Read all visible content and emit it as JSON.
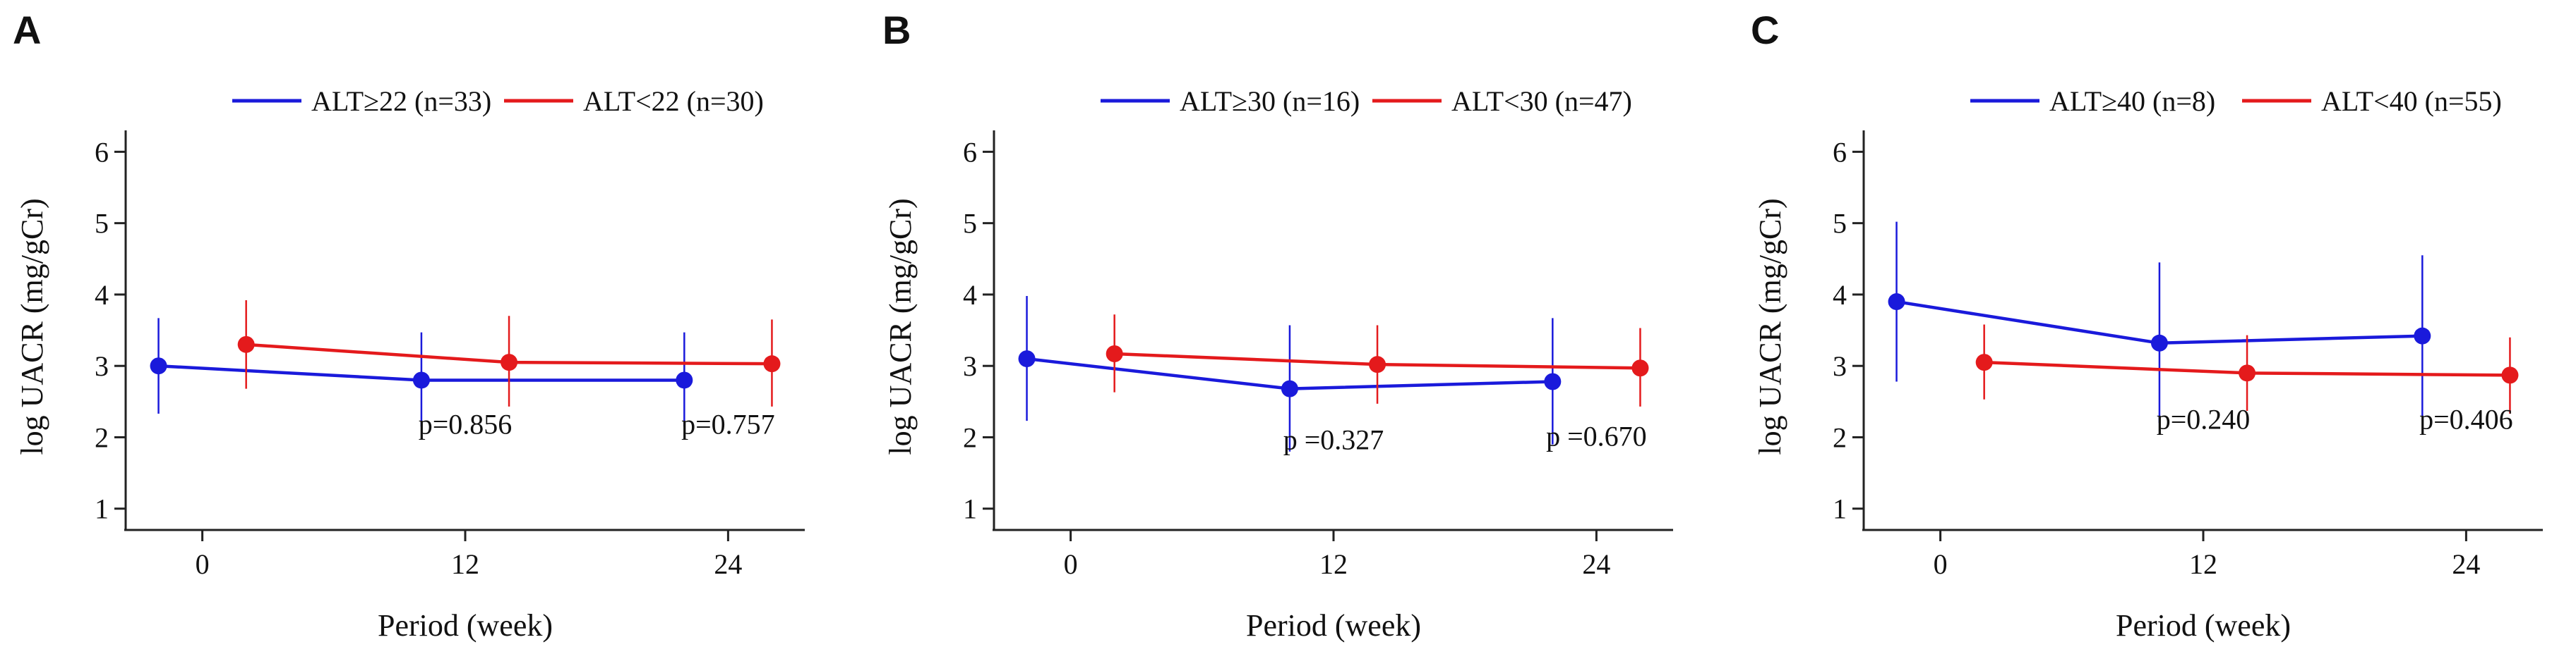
{
  "figure": {
    "description_domain": "Chart"
  },
  "chart_data": [
    {
      "panel_label": "A",
      "type": "line",
      "xlabel": "Period (week)",
      "ylabel": "log UACR (mg/gCr)",
      "xticks": [
        "0",
        "12",
        "24"
      ],
      "yticks": [
        "1",
        "2",
        "3",
        "4",
        "5",
        "6"
      ],
      "ylim": [
        0.8,
        6.3
      ],
      "xlim": [
        -3.5,
        27.5
      ],
      "colors": {
        "high": "#1a1adb",
        "low": "#e41a1c"
      },
      "series": [
        {
          "name": "ALT≥22 (n=33)",
          "key": "high",
          "x": [
            -2,
            10,
            22
          ],
          "y": [
            3.0,
            2.8,
            2.8
          ],
          "err_low": [
            2.33,
            2.15,
            2.15
          ],
          "err_high": [
            3.67,
            3.47,
            3.47
          ]
        },
        {
          "name": "ALT<22 (n=30)",
          "key": "low",
          "x": [
            2,
            14,
            26
          ],
          "y": [
            3.3,
            3.05,
            3.03
          ],
          "err_low": [
            2.68,
            2.43,
            2.43
          ],
          "err_high": [
            3.92,
            3.7,
            3.65
          ]
        }
      ],
      "annotations": [
        {
          "text": "p=0.856",
          "x": 12,
          "y": 2.05
        },
        {
          "text": "p=0.757",
          "x": 24,
          "y": 2.05
        }
      ]
    },
    {
      "panel_label": "B",
      "type": "line",
      "xlabel": "Period (week)",
      "ylabel": "log UACR (mg/gCr)",
      "xticks": [
        "0",
        "12",
        "24"
      ],
      "yticks": [
        "1",
        "2",
        "3",
        "4",
        "5",
        "6"
      ],
      "ylim": [
        0.8,
        6.3
      ],
      "xlim": [
        -3.5,
        27.5
      ],
      "colors": {
        "high": "#1a1adb",
        "low": "#e41a1c"
      },
      "series": [
        {
          "name": "ALT≥30 (n=16)",
          "key": "high",
          "x": [
            -2,
            10,
            22
          ],
          "y": [
            3.1,
            2.68,
            2.78
          ],
          "err_low": [
            2.23,
            1.8,
            1.9
          ],
          "err_high": [
            3.98,
            3.57,
            3.67
          ]
        },
        {
          "name": "ALT<30 (n=47)",
          "key": "low",
          "x": [
            2,
            14,
            26
          ],
          "y": [
            3.17,
            3.02,
            2.97
          ],
          "err_low": [
            2.63,
            2.47,
            2.43
          ],
          "err_high": [
            3.72,
            3.57,
            3.53
          ]
        }
      ],
      "annotations": [
        {
          "text": "p =0.327",
          "x": 12,
          "y": 1.83
        },
        {
          "text": "p =0.670",
          "x": 24,
          "y": 1.88
        }
      ]
    },
    {
      "panel_label": "C",
      "type": "line",
      "xlabel": "Period (week)",
      "ylabel": "log UACR (mg/gCr)",
      "xticks": [
        "0",
        "12",
        "24"
      ],
      "yticks": [
        "1",
        "2",
        "3",
        "4",
        "5",
        "6"
      ],
      "ylim": [
        0.8,
        6.3
      ],
      "xlim": [
        -3.5,
        27.5
      ],
      "colors": {
        "high": "#1a1adb",
        "low": "#e41a1c"
      },
      "series": [
        {
          "name": "ALT≥40 (n=8)",
          "key": "high",
          "x": [
            -2,
            10,
            22
          ],
          "y": [
            3.9,
            3.32,
            3.42
          ],
          "err_low": [
            2.78,
            2.2,
            2.3
          ],
          "err_high": [
            5.02,
            4.45,
            4.55
          ]
        },
        {
          "name": "ALT<40 (n=55)",
          "key": "low",
          "x": [
            2,
            14,
            26
          ],
          "y": [
            3.05,
            2.9,
            2.87
          ],
          "err_low": [
            2.53,
            2.37,
            2.33
          ],
          "err_high": [
            3.58,
            3.43,
            3.4
          ]
        }
      ],
      "annotations": [
        {
          "text": "p=0.240",
          "x": 12,
          "y": 2.12
        },
        {
          "text": "p=0.406",
          "x": 24,
          "y": 2.12
        }
      ]
    }
  ]
}
